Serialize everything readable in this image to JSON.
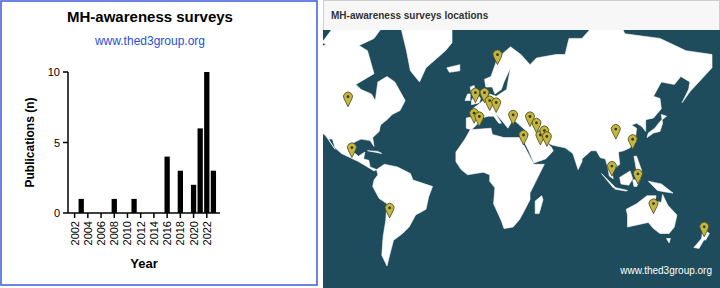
{
  "chart_data": {
    "type": "bar",
    "title": "MH-awareness surveys",
    "subtitle": "www.thed3group.org",
    "x_label": "Year",
    "y_label": "Publications (n)",
    "x": [
      2003,
      2008,
      2011,
      2016,
      2018,
      2020,
      2021,
      2022,
      2023
    ],
    "values": [
      1,
      1,
      1,
      4,
      3,
      2,
      6,
      10,
      3
    ],
    "color": "#000000",
    "xlim": [
      2001,
      2024
    ],
    "xticks": [
      2002,
      2004,
      2006,
      2008,
      2010,
      2012,
      2014,
      2016,
      2018,
      2020,
      2022
    ],
    "ylim": [
      0,
      10
    ],
    "yticks": [
      0,
      5,
      10
    ]
  },
  "map": {
    "title": "MH-awareness surveys locations",
    "credit": "www.thed3group.org",
    "color": "#c2b73f",
    "markers": [
      {
        "lon": -100,
        "lat": 49
      },
      {
        "lon": -97,
        "lat": 17
      },
      {
        "lon": -68,
        "lat": -28
      },
      {
        "lon": -2,
        "lat": 51
      },
      {
        "lon": 5,
        "lat": 51
      },
      {
        "lon": 15,
        "lat": 66
      },
      {
        "lon": 9,
        "lat": 47
      },
      {
        "lon": 14,
        "lat": 46
      },
      {
        "lon": -3,
        "lat": 40
      },
      {
        "lon": 1,
        "lat": 38
      },
      {
        "lon": 27,
        "lat": 39
      },
      {
        "lon": 40,
        "lat": 38
      },
      {
        "lon": 45,
        "lat": 34
      },
      {
        "lon": 35,
        "lat": 26
      },
      {
        "lon": 48,
        "lat": 26
      },
      {
        "lon": 51,
        "lat": 29
      },
      {
        "lon": 53,
        "lat": 25
      },
      {
        "lon": 106,
        "lat": 30
      },
      {
        "lon": 119,
        "lat": 23
      },
      {
        "lon": 103,
        "lat": 3
      },
      {
        "lon": 123,
        "lat": -3
      },
      {
        "lon": 135,
        "lat": -25
      },
      {
        "lon": 174,
        "lat": -40
      }
    ]
  }
}
